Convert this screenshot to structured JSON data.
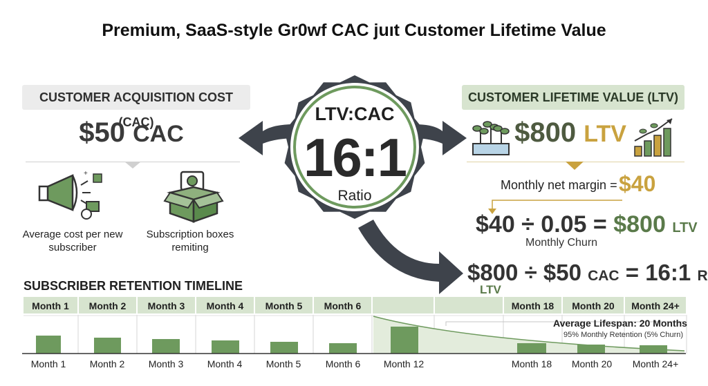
{
  "title": "Premium, SaaS-style Gr0wf CAC juıt Customer Lifetime Value",
  "cac": {
    "header": "CUSTOMER ACQUISITION COST (CAC)",
    "value": "$50",
    "unit": "CAC",
    "item1_label": "Average cost per new subscriber",
    "item2_label": "Subscription boxes remiting",
    "icon1": "megaphone-icon",
    "icon2": "subscription-box-icon"
  },
  "ratio_badge": {
    "title": "LTV:CAC",
    "ratio": "16:1",
    "subtitle": "Ratio"
  },
  "ltv": {
    "header": "CUSTOMER LIFETIME VALUE (LTV)",
    "value": "$800",
    "unit": "LTV",
    "margin_label": "Monthly net margin =",
    "margin_value": "$40",
    "eq1_left": "$40 ÷ 0.05 =",
    "eq1_result": "$800",
    "eq1_unit": "LTV",
    "churn_label": "Monthly Churn",
    "eq2_left": "$800 ÷ $50",
    "eq2_unit1": "CAC",
    "eq2_mid": "= 16:1",
    "eq2_unit2": "Ratio",
    "eq2_sub": "LTV",
    "icon1": "plants-icon",
    "icon2": "growth-chart-icon"
  },
  "timeline": {
    "title": "SUBSCRIBER RETENTION TIMELINE",
    "header_months": [
      "Month 1",
      "Month 2",
      "Month 3",
      "Month 4",
      "Month 5",
      "Month 6",
      "",
      "",
      "Month 18",
      "Month 20",
      "Month 24+"
    ],
    "axis_months": [
      "Month 1",
      "Month 2",
      "Month 3",
      "Month 4",
      "Month 5",
      "Month 6",
      "Month 12",
      "Month 18",
      "Month 20",
      "Month 24+"
    ],
    "avg_title": "Average Lifespan: 20 Months",
    "avg_sub": "95% Monthly Retention (5% Churn)"
  },
  "colors": {
    "green": "#6e9a5e",
    "light_green": "#d7e4cf",
    "gold": "#c9a23f",
    "dark": "#3e434b"
  }
}
